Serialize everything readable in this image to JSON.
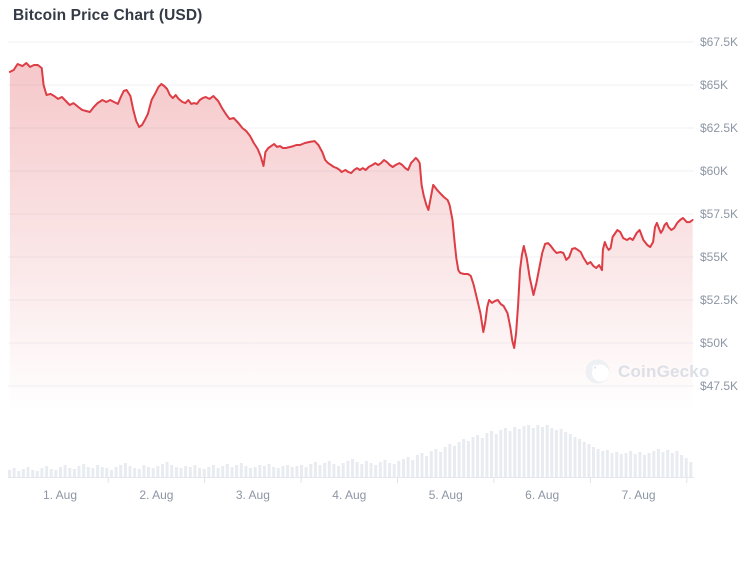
{
  "title": "Bitcoin Price Chart (USD)",
  "watermark": {
    "label": "CoinGecko",
    "icon": "gecko-logo"
  },
  "colors": {
    "line": "#dd3d45",
    "area_top": "rgba(221,61,69,0.30)",
    "area_bottom": "rgba(221,61,69,0)",
    "grid": "#f0f2f5",
    "volume": "#e8ecf1",
    "baseline": "#e4e8ee",
    "day_tick": "#dfe4ea",
    "axis_text": "#8c96a4",
    "title_text": "#343b46",
    "background": "#ffffff"
  },
  "chart_data": {
    "type": "area",
    "title": "Bitcoin Price Chart (USD)",
    "currency": "USD",
    "legend": "none",
    "grid": "horizontal-only",
    "y_axis": {
      "side": "right",
      "tick_labels": [
        "$67.5K",
        "$65K",
        "$62.5K",
        "$60K",
        "$57.5K",
        "$55K",
        "$52.5K",
        "$50K",
        "$47.5K"
      ],
      "ticks_k_usd": [
        67.5,
        65,
        62.5,
        60,
        57.5,
        55,
        52.5,
        50,
        47.5
      ],
      "range_k_usd": [
        47.5,
        67.5
      ]
    },
    "x_axis": {
      "tick_labels": [
        "1. Aug",
        "2. Aug",
        "3. Aug",
        "4. Aug",
        "5. Aug",
        "6. Aug",
        "7. Aug"
      ],
      "unit": "day of August"
    },
    "price_series": {
      "name": "BTC price",
      "unit": "thousand USD",
      "x_unit": "days from start of Aug 1",
      "points": [
        [
          -0.02,
          65.76
        ],
        [
          0.02,
          65.87
        ],
        [
          0.06,
          66.22
        ],
        [
          0.11,
          66.1
        ],
        [
          0.15,
          66.28
        ],
        [
          0.19,
          66.05
        ],
        [
          0.23,
          66.16
        ],
        [
          0.27,
          66.16
        ],
        [
          0.31,
          65.99
        ],
        [
          0.33,
          65
        ],
        [
          0.36,
          64.42
        ],
        [
          0.4,
          64.48
        ],
        [
          0.44,
          64.36
        ],
        [
          0.48,
          64.19
        ],
        [
          0.52,
          64.3
        ],
        [
          0.56,
          64.07
        ],
        [
          0.6,
          63.84
        ],
        [
          0.64,
          63.95
        ],
        [
          0.69,
          63.72
        ],
        [
          0.73,
          63.55
        ],
        [
          0.77,
          63.49
        ],
        [
          0.81,
          63.43
        ],
        [
          0.85,
          63.72
        ],
        [
          0.89,
          63.95
        ],
        [
          0.94,
          64.13
        ],
        [
          0.98,
          64.01
        ],
        [
          1.02,
          64.13
        ],
        [
          1.06,
          64.01
        ],
        [
          1.1,
          63.9
        ],
        [
          1.13,
          64.3
        ],
        [
          1.16,
          64.65
        ],
        [
          1.19,
          64.71
        ],
        [
          1.23,
          64.36
        ],
        [
          1.26,
          63.55
        ],
        [
          1.29,
          62.91
        ],
        [
          1.32,
          62.56
        ],
        [
          1.35,
          62.67
        ],
        [
          1.38,
          62.97
        ],
        [
          1.41,
          63.31
        ],
        [
          1.45,
          64.13
        ],
        [
          1.49,
          64.54
        ],
        [
          1.52,
          64.88
        ],
        [
          1.55,
          65.06
        ],
        [
          1.58,
          64.94
        ],
        [
          1.61,
          64.77
        ],
        [
          1.64,
          64.42
        ],
        [
          1.67,
          64.24
        ],
        [
          1.7,
          64.42
        ],
        [
          1.73,
          64.19
        ],
        [
          1.77,
          64.01
        ],
        [
          1.8,
          63.95
        ],
        [
          1.83,
          64.13
        ],
        [
          1.86,
          63.9
        ],
        [
          1.89,
          63.95
        ],
        [
          1.92,
          63.9
        ],
        [
          1.95,
          64.13
        ],
        [
          1.98,
          64.24
        ],
        [
          2.01,
          64.3
        ],
        [
          2.05,
          64.19
        ],
        [
          2.09,
          64.36
        ],
        [
          2.14,
          64.07
        ],
        [
          2.18,
          63.66
        ],
        [
          2.22,
          63.31
        ],
        [
          2.26,
          63.02
        ],
        [
          2.3,
          63.08
        ],
        [
          2.35,
          62.79
        ],
        [
          2.39,
          62.5
        ],
        [
          2.43,
          62.33
        ],
        [
          2.47,
          62.04
        ],
        [
          2.51,
          61.63
        ],
        [
          2.55,
          61.28
        ],
        [
          2.58,
          60.87
        ],
        [
          2.61,
          60.29
        ],
        [
          2.63,
          61.1
        ],
        [
          2.66,
          61.34
        ],
        [
          2.69,
          61.45
        ],
        [
          2.72,
          61.57
        ],
        [
          2.75,
          61.4
        ],
        [
          2.78,
          61.45
        ],
        [
          2.81,
          61.34
        ],
        [
          2.84,
          61.34
        ],
        [
          2.89,
          61.4
        ],
        [
          2.92,
          61.45
        ],
        [
          2.95,
          61.51
        ],
        [
          2.99,
          61.51
        ],
        [
          3.04,
          61.63
        ],
        [
          3.09,
          61.69
        ],
        [
          3.14,
          61.74
        ],
        [
          3.18,
          61.51
        ],
        [
          3.22,
          61.1
        ],
        [
          3.25,
          60.64
        ],
        [
          3.28,
          60.46
        ],
        [
          3.31,
          60.35
        ],
        [
          3.34,
          60.23
        ],
        [
          3.37,
          60.17
        ],
        [
          3.4,
          60.06
        ],
        [
          3.42,
          59.94
        ],
        [
          3.46,
          60.06
        ],
        [
          3.49,
          59.94
        ],
        [
          3.52,
          59.88
        ],
        [
          3.55,
          60.06
        ],
        [
          3.58,
          60.17
        ],
        [
          3.61,
          60.06
        ],
        [
          3.64,
          60.17
        ],
        [
          3.67,
          60.06
        ],
        [
          3.7,
          60.23
        ],
        [
          3.74,
          60.35
        ],
        [
          3.77,
          60.46
        ],
        [
          3.8,
          60.35
        ],
        [
          3.83,
          60.46
        ],
        [
          3.86,
          60.64
        ],
        [
          3.89,
          60.52
        ],
        [
          3.92,
          60.35
        ],
        [
          3.95,
          60.23
        ],
        [
          3.98,
          60.35
        ],
        [
          4.02,
          60.46
        ],
        [
          4.05,
          60.35
        ],
        [
          4.08,
          60.17
        ],
        [
          4.11,
          60.06
        ],
        [
          4.14,
          60.46
        ],
        [
          4.17,
          60.64
        ],
        [
          4.19,
          60.76
        ],
        [
          4.21,
          60.64
        ],
        [
          4.23,
          60.46
        ],
        [
          4.25,
          59.19
        ],
        [
          4.27,
          58.6
        ],
        [
          4.3,
          58.02
        ],
        [
          4.32,
          57.73
        ],
        [
          4.34,
          58.31
        ],
        [
          4.37,
          59.19
        ],
        [
          4.41,
          58.9
        ],
        [
          4.44,
          58.72
        ],
        [
          4.48,
          58.49
        ],
        [
          4.52,
          58.31
        ],
        [
          4.54,
          58.02
        ],
        [
          4.57,
          57.15
        ],
        [
          4.59,
          55.99
        ],
        [
          4.61,
          54.94
        ],
        [
          4.63,
          54.24
        ],
        [
          4.65,
          54.07
        ],
        [
          4.69,
          54.01
        ],
        [
          4.73,
          54.01
        ],
        [
          4.76,
          53.9
        ],
        [
          4.79,
          53.37
        ],
        [
          4.82,
          52.67
        ],
        [
          4.86,
          51.74
        ],
        [
          4.89,
          50.64
        ],
        [
          4.91,
          51.22
        ],
        [
          4.93,
          52.09
        ],
        [
          4.95,
          52.5
        ],
        [
          4.98,
          52.33
        ],
        [
          5.01,
          52.44
        ],
        [
          5.04,
          52.5
        ],
        [
          5.07,
          52.27
        ],
        [
          5.1,
          52.15
        ],
        [
          5.14,
          51.74
        ],
        [
          5.17,
          50.93
        ],
        [
          5.19,
          50.12
        ],
        [
          5.21,
          49.71
        ],
        [
          5.23,
          50.58
        ],
        [
          5.25,
          52.21
        ],
        [
          5.27,
          54.24
        ],
        [
          5.29,
          55.11
        ],
        [
          5.31,
          55.64
        ],
        [
          5.34,
          54.94
        ],
        [
          5.37,
          53.84
        ],
        [
          5.41,
          52.79
        ],
        [
          5.44,
          53.49
        ],
        [
          5.47,
          54.36
        ],
        [
          5.5,
          55.23
        ],
        [
          5.53,
          55.76
        ],
        [
          5.56,
          55.81
        ],
        [
          5.59,
          55.64
        ],
        [
          5.62,
          55.41
        ],
        [
          5.65,
          55.23
        ],
        [
          5.69,
          55.29
        ],
        [
          5.72,
          55.23
        ],
        [
          5.75,
          54.83
        ],
        [
          5.78,
          55
        ],
        [
          5.81,
          55.47
        ],
        [
          5.84,
          55.52
        ],
        [
          5.87,
          55.41
        ],
        [
          5.9,
          55.29
        ],
        [
          5.93,
          54.94
        ],
        [
          5.97,
          54.59
        ],
        [
          6,
          54.71
        ],
        [
          6.03,
          54.48
        ],
        [
          6.06,
          54.36
        ],
        [
          6.09,
          54.53
        ],
        [
          6.12,
          54.24
        ],
        [
          6.13,
          55.41
        ],
        [
          6.15,
          55.87
        ],
        [
          6.17,
          55.58
        ],
        [
          6.19,
          55.41
        ],
        [
          6.21,
          55.52
        ],
        [
          6.23,
          56.16
        ],
        [
          6.28,
          56.57
        ],
        [
          6.31,
          56.45
        ],
        [
          6.34,
          56.1
        ],
        [
          6.38,
          55.99
        ],
        [
          6.41,
          56.1
        ],
        [
          6.44,
          55.99
        ],
        [
          6.48,
          56.4
        ],
        [
          6.51,
          56.57
        ],
        [
          6.55,
          55.99
        ],
        [
          6.59,
          55.7
        ],
        [
          6.62,
          55.58
        ],
        [
          6.65,
          55.87
        ],
        [
          6.67,
          56.74
        ],
        [
          6.69,
          56.98
        ],
        [
          6.71,
          56.69
        ],
        [
          6.73,
          56.4
        ],
        [
          6.75,
          56.57
        ],
        [
          6.77,
          56.86
        ],
        [
          6.79,
          56.98
        ],
        [
          6.81,
          56.74
        ],
        [
          6.84,
          56.57
        ],
        [
          6.87,
          56.69
        ],
        [
          6.9,
          56.98
        ],
        [
          6.93,
          57.15
        ],
        [
          6.96,
          57.27
        ],
        [
          7,
          57.03
        ],
        [
          7.03,
          57.03
        ],
        [
          7.06,
          57.15
        ]
      ]
    },
    "volume_series": {
      "name": "volume",
      "unit": "relative height (no axis shown)",
      "relative_heights": [
        7,
        9,
        6,
        8,
        10,
        7,
        6,
        9,
        11,
        8,
        7,
        10,
        12,
        9,
        8,
        11,
        13,
        10,
        9,
        12,
        10,
        9,
        7,
        10,
        12,
        14,
        11,
        9,
        8,
        12,
        10,
        9,
        11,
        13,
        15,
        12,
        10,
        9,
        11,
        10,
        12,
        9,
        8,
        10,
        12,
        9,
        11,
        13,
        10,
        12,
        14,
        11,
        9,
        10,
        12,
        11,
        13,
        10,
        9,
        11,
        12,
        10,
        11,
        12,
        10,
        13,
        15,
        12,
        14,
        16,
        13,
        11,
        14,
        16,
        18,
        15,
        13,
        16,
        14,
        12,
        15,
        17,
        14,
        13,
        16,
        18,
        20,
        17,
        22,
        24,
        21,
        26,
        28,
        25,
        30,
        33,
        31,
        35,
        38,
        36,
        40,
        42,
        39,
        44,
        46,
        43,
        47,
        49,
        46,
        50,
        48,
        51,
        52,
        49,
        52,
        50,
        52,
        49,
        47,
        48,
        45,
        43,
        40,
        38,
        35,
        33,
        30,
        28,
        26,
        27,
        24,
        25,
        23,
        24,
        26,
        23,
        25,
        22,
        24,
        26,
        28,
        25,
        27,
        24,
        26,
        22,
        19,
        15
      ]
    }
  }
}
